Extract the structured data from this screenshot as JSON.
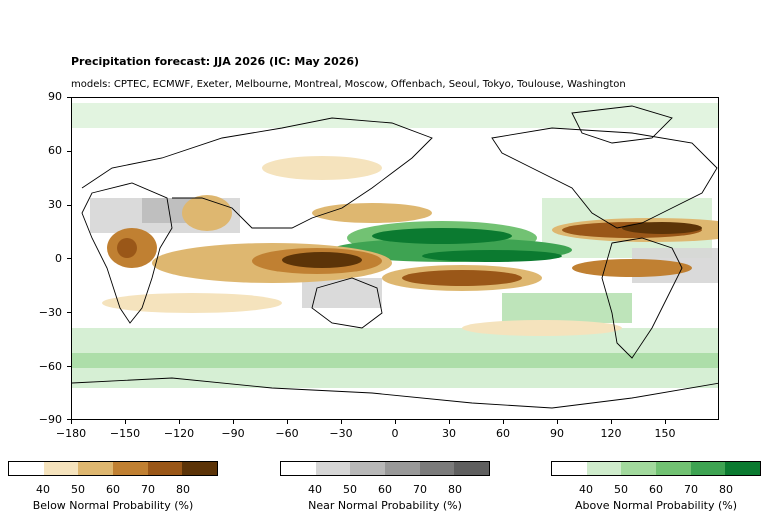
{
  "header": {
    "title": "Precipitation forecast: JJA 2026 (IC: May 2026)",
    "subtitle": "models: CPTEC, ECMWF, Exeter, Melbourne, Montreal, Moscow, Offenbach, Seoul, Tokyo, Toulouse, Washington"
  },
  "map": {
    "lon_ticks": [
      "−180",
      "−150",
      "−120",
      "−90",
      "−60",
      "−30",
      "0",
      "30",
      "60",
      "90",
      "120",
      "150"
    ],
    "lat_ticks": [
      "90",
      "60",
      "30",
      "0",
      "−30",
      "−60",
      "−90"
    ],
    "lon_range": [
      -180,
      180
    ],
    "lat_range": [
      -90,
      90
    ]
  },
  "colorbars": [
    {
      "label": "Below Normal Probability (%)",
      "ticks": [
        "40",
        "50",
        "60",
        "70",
        "80"
      ],
      "colors": [
        "#ffffff",
        "#f5e3bd",
        "#deb770",
        "#c08032",
        "#9a5718",
        "#5c3408"
      ]
    },
    {
      "label": "Near Normal Probability (%)",
      "ticks": [
        "40",
        "50",
        "60",
        "70",
        "80"
      ],
      "colors": [
        "#ffffff",
        "#d6d6d6",
        "#b8b8b8",
        "#999999",
        "#7b7b7b",
        "#5f5f5f"
      ]
    },
    {
      "label": "Above Normal Probability (%)",
      "ticks": [
        "40",
        "50",
        "60",
        "70",
        "80"
      ],
      "colors": [
        "#ffffff",
        "#cfeccc",
        "#a2d99d",
        "#72c273",
        "#3ea352",
        "#0b7a30"
      ]
    }
  ]
}
